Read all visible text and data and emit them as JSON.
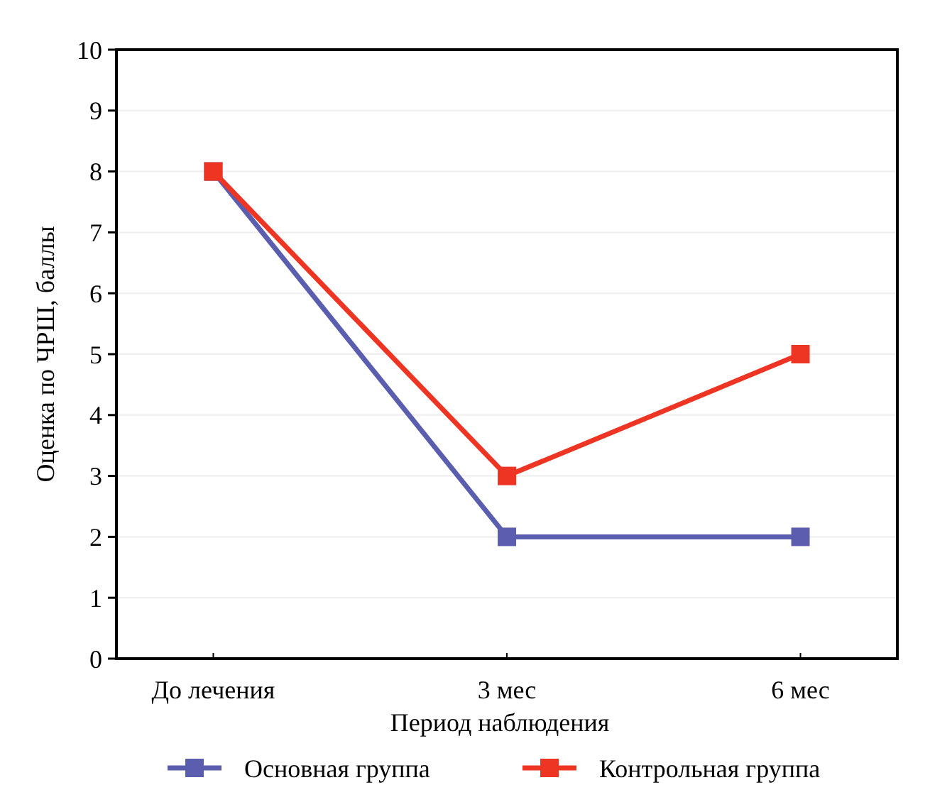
{
  "chart_data": {
    "type": "line",
    "xlabel": "Период наблюдения",
    "ylabel": "Оценка по ЧРШ, баллы",
    "categories": [
      "До лечения",
      "3 мес",
      "6 мес"
    ],
    "series": [
      {
        "name": "Основная группа",
        "color": "#5b5eae",
        "values": [
          8,
          2,
          2
        ]
      },
      {
        "name": "Контрольная группа",
        "color": "#ee3524",
        "values": [
          8,
          3,
          5
        ]
      }
    ],
    "ylim": [
      0,
      10
    ],
    "yticks": [
      0,
      1,
      2,
      3,
      4,
      5,
      6,
      7,
      8,
      9,
      10
    ],
    "grid": "y",
    "legend": "bottom",
    "marker": "square",
    "line_style": "solid"
  }
}
